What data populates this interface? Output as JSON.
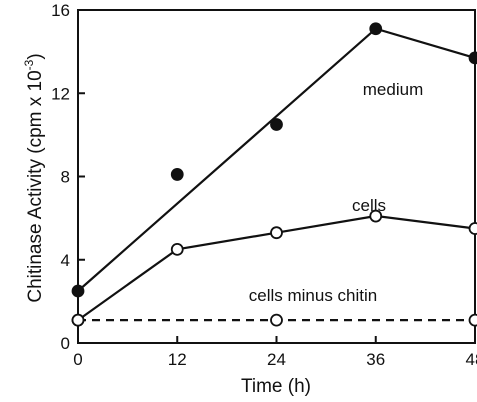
{
  "chart_data": {
    "type": "line",
    "title": "",
    "xlabel": "Time (h)",
    "ylabel": "Chitinase Activity (cpm x 10",
    "ylabel_exponent": "-3",
    "ylabel_close": ")",
    "xlim": [
      0,
      48
    ],
    "ylim": [
      0,
      16
    ],
    "xticks": [
      0,
      12,
      24,
      36,
      48
    ],
    "yticks": [
      0,
      4,
      8,
      12,
      16
    ],
    "grid": false,
    "legend": "none",
    "series": [
      {
        "name": "medium",
        "marker": "filled-circle",
        "line": "solid",
        "points": [
          [
            0,
            2.5
          ],
          [
            12,
            8.1
          ],
          [
            24,
            10.5
          ],
          [
            36,
            15.1
          ],
          [
            48,
            13.7
          ]
        ],
        "fit_line": [
          [
            0,
            2.5
          ],
          [
            36,
            15.1
          ],
          [
            48,
            13.7
          ]
        ]
      },
      {
        "name": "cells",
        "marker": "open-circle",
        "line": "solid",
        "points": [
          [
            0,
            1.1
          ],
          [
            12,
            4.5
          ],
          [
            24,
            5.3
          ],
          [
            36,
            6.1
          ],
          [
            48,
            5.5
          ]
        ],
        "fit_line": [
          [
            0,
            1.1
          ],
          [
            12,
            4.5
          ],
          [
            24,
            5.3
          ],
          [
            36,
            6.1
          ],
          [
            48,
            5.5
          ]
        ]
      },
      {
        "name": "cells minus chitin",
        "marker": "open-circle",
        "line": "dashed",
        "points": [
          [
            0,
            1.1
          ],
          [
            24,
            1.1
          ],
          [
            48,
            1.1
          ]
        ],
        "fit_line": [
          [
            0,
            1.1
          ],
          [
            48,
            1.1
          ]
        ]
      }
    ],
    "colors": {
      "ink": "#111111",
      "background": "#ffffff"
    }
  }
}
